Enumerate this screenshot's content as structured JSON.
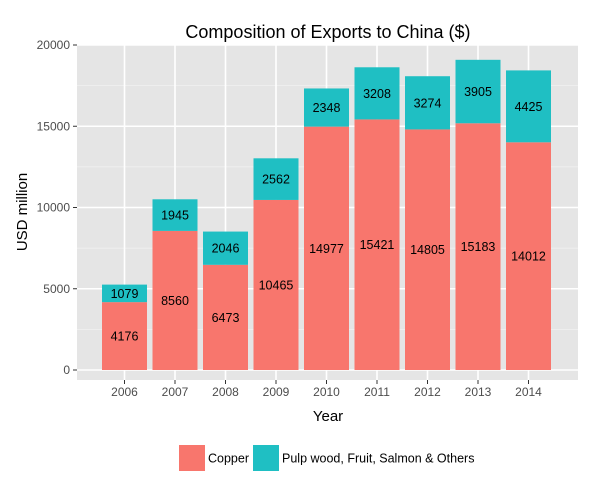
{
  "chart_data": {
    "type": "bar",
    "stacked": true,
    "title": "Composition of Exports to China ($)",
    "xlabel": "Year",
    "ylabel": "USD million",
    "categories": [
      "2006",
      "2007",
      "2008",
      "2009",
      "2010",
      "2011",
      "2012",
      "2013",
      "2014"
    ],
    "ylim": [
      0,
      20000
    ],
    "yticks": [
      0,
      5000,
      10000,
      15000,
      20000
    ],
    "grid": true,
    "legend_position": "bottom",
    "series": [
      {
        "name": "Copper",
        "color": "#f8766d",
        "values": [
          4176,
          8560,
          6473,
          10465,
          14977,
          15421,
          14805,
          15183,
          14012
        ]
      },
      {
        "name": "Pulp wood, Fruit, Salmon & Others",
        "color": "#1fbfc3",
        "values": [
          1079,
          1945,
          2046,
          2562,
          2348,
          3208,
          3274,
          3905,
          4425
        ]
      }
    ],
    "panel_background": "#e5e5e5",
    "grid_color": "#ffffff"
  }
}
